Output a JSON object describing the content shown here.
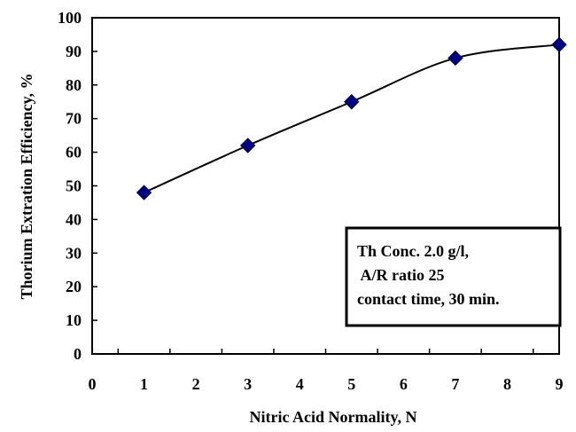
{
  "chart_data": {
    "type": "line",
    "title": "",
    "xlabel": "Nitric Acid Normality, N",
    "ylabel": "Thorium Extration Efficiency, %",
    "xlim": [
      0,
      9
    ],
    "ylim": [
      0,
      100
    ],
    "x_ticks": [
      "0",
      "1",
      "2",
      "3",
      "4",
      "5",
      "6",
      "7",
      "8",
      "9"
    ],
    "y_ticks": [
      "0",
      "10",
      "20",
      "30",
      "40",
      "50",
      "60",
      "70",
      "80",
      "90",
      "100"
    ],
    "grid": false,
    "marker": "diamond",
    "series_color": "#000080",
    "line_color": "#000000",
    "series": [
      {
        "x": [
          1,
          3,
          5,
          7,
          9
        ],
        "values": [
          48,
          62,
          75,
          88,
          92
        ]
      }
    ],
    "annotation": {
      "lines": [
        "Th Conc. 2.0 g/l,",
        " A/R ratio 25",
        "contact time, 30 min."
      ]
    }
  }
}
